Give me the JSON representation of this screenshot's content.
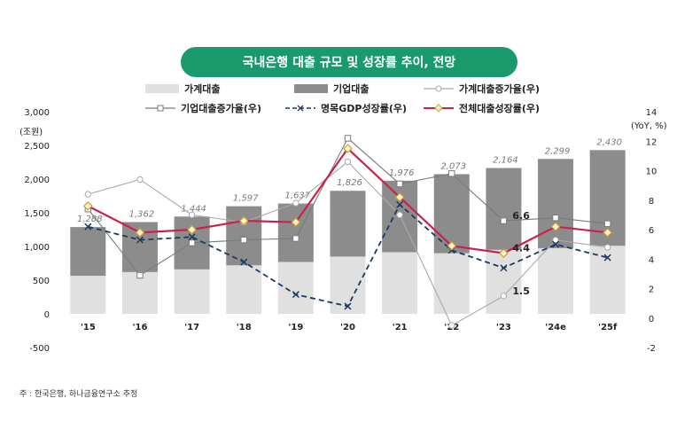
{
  "title": "국내은행 대출 규모 및 성장률 추이, 전망",
  "legend": {
    "household_loan": "가계대출",
    "corporate_loan": "기업대출",
    "household_growth": "가계대출증가율(우)",
    "corporate_growth": "기업대출증가율(우)",
    "gdp_growth": "명목GDP성장률(우)",
    "total_growth": "전체대출성장률(우)"
  },
  "footnote": "주 : 한국은행, 하나금융연구소 추정",
  "chart_data": {
    "type": "bar",
    "categories": [
      "'15",
      "'16",
      "'17",
      "'18",
      "'19",
      "'20",
      "'21",
      "'22",
      "'23",
      "'24e",
      "'25f"
    ],
    "left_axis": {
      "unit": "(조원)",
      "ylim": [
        -500,
        3000
      ],
      "ticks": [
        "-500",
        "0",
        "500",
        "1,000",
        "1,500",
        "2,000",
        "2,500",
        "3,000"
      ]
    },
    "right_axis": {
      "unit": "(YoY, %)",
      "ylim": [
        -2,
        14
      ],
      "ticks": [
        "-2",
        "0",
        "2",
        "4",
        "6",
        "8",
        "10",
        "12",
        "14"
      ]
    },
    "bars": [
      {
        "name": "가계대출",
        "color": "#e0e0e0",
        "values": [
          565,
          620,
          660,
          720,
          770,
          850,
          915,
          900,
          950,
          975,
          1010
        ]
      },
      {
        "name": "기업대출",
        "color": "#8c8c8c",
        "values": [
          723,
          742,
          784,
          877,
          867,
          976,
          1061,
          1173,
          1214,
          1324,
          1420
        ]
      }
    ],
    "total_labels": [
      "1,288",
      "1,362",
      "1,444",
      "1,597",
      "1,637",
      "1,826",
      "1,976",
      "2,073",
      "2,164",
      "2,299",
      "2,430"
    ],
    "lines": [
      {
        "name": "가계대출증가율(우)",
        "color": "#aaaaaa",
        "dash": "",
        "marker": "circle",
        "values": [
          8.4,
          9.4,
          7.0,
          6.5,
          7.8,
          10.6,
          7.0,
          -0.5,
          1.5,
          5.3,
          4.8
        ]
      },
      {
        "name": "기업대출증가율(우)",
        "color": "#7a7a7a",
        "dash": "",
        "marker": "square",
        "values": [
          7.4,
          2.9,
          5.1,
          5.3,
          5.4,
          12.2,
          9.1,
          9.8,
          6.6,
          6.8,
          6.4
        ]
      },
      {
        "name": "명목GDP성장률(우)",
        "color": "#1f3a5f",
        "dash": "6,4",
        "marker": "x",
        "values": [
          6.2,
          5.3,
          5.5,
          3.8,
          1.6,
          0.8,
          7.7,
          4.6,
          3.4,
          5.0,
          4.1
        ]
      },
      {
        "name": "전체대출성장률(우)",
        "color": "#c8234e",
        "dash": "",
        "marker": "diamond",
        "values": [
          7.6,
          5.8,
          6.0,
          6.6,
          6.5,
          11.5,
          8.2,
          4.9,
          4.4,
          6.2,
          5.8
        ]
      }
    ],
    "annotations": [
      {
        "text": "6.6",
        "index": 8,
        "value": 6.6
      },
      {
        "text": "4.4",
        "index": 8,
        "value": 4.4
      },
      {
        "text": "1.5",
        "index": 8,
        "value": 1.5
      }
    ]
  }
}
